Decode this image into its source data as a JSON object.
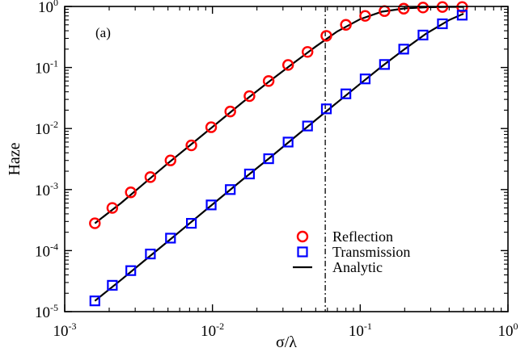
{
  "chart_data": {
    "type": "scatter",
    "panel_label": "(a)",
    "xlabel": "σ/λ",
    "ylabel": "Haze",
    "xscale": "log",
    "yscale": "log",
    "xlim": [
      0.001,
      1
    ],
    "ylim": [
      1e-05,
      1
    ],
    "x_ticks": [
      {
        "base": "10",
        "exp": "-3",
        "value": 0.001
      },
      {
        "base": "10",
        "exp": "-2",
        "value": 0.01
      },
      {
        "base": "10",
        "exp": "-1",
        "value": 0.1
      },
      {
        "base": "10",
        "exp": "0",
        "value": 1
      }
    ],
    "y_ticks": [
      {
        "base": "10",
        "exp": "-5",
        "value": 1e-05
      },
      {
        "base": "10",
        "exp": "-4",
        "value": 0.0001
      },
      {
        "base": "10",
        "exp": "-3",
        "value": 0.001
      },
      {
        "base": "10",
        "exp": "-2",
        "value": 0.01
      },
      {
        "base": "10",
        "exp": "-1",
        "value": 0.1
      },
      {
        "base": "10",
        "exp": "0",
        "value": 1
      }
    ],
    "vertical_line": {
      "x": 0.058,
      "style": "dash-dot"
    },
    "series": [
      {
        "name": "Reflection",
        "marker": "circle",
        "color": "#ff0000",
        "x": [
          0.0016,
          0.0021,
          0.0028,
          0.0038,
          0.0052,
          0.0072,
          0.0098,
          0.0132,
          0.0178,
          0.024,
          0.0325,
          0.044,
          0.059,
          0.08,
          0.108,
          0.146,
          0.197,
          0.266,
          0.36,
          0.49
        ],
        "values": [
          0.00028,
          0.0005,
          0.0009,
          0.0016,
          0.003,
          0.0053,
          0.0105,
          0.019,
          0.034,
          0.06,
          0.11,
          0.18,
          0.33,
          0.5,
          0.7,
          0.84,
          0.92,
          0.96,
          0.98,
          0.98
        ]
      },
      {
        "name": "Transmission",
        "marker": "square",
        "color": "#0000ff",
        "x": [
          0.0016,
          0.0021,
          0.0028,
          0.0038,
          0.0052,
          0.0072,
          0.0098,
          0.0132,
          0.0178,
          0.024,
          0.0325,
          0.044,
          0.059,
          0.08,
          0.108,
          0.146,
          0.197,
          0.266,
          0.36,
          0.49
        ],
        "values": [
          1.5e-05,
          2.7e-05,
          4.7e-05,
          8.8e-05,
          0.00016,
          0.00028,
          0.00056,
          0.001,
          0.0018,
          0.0032,
          0.006,
          0.011,
          0.021,
          0.037,
          0.065,
          0.112,
          0.2,
          0.34,
          0.52,
          0.72
        ]
      },
      {
        "name": "Analytic",
        "marker": "line",
        "color": "#000000",
        "curves": [
          {
            "x": [
              0.0016,
              0.0024,
              0.0035,
              0.005,
              0.0075,
              0.011,
              0.016,
              0.024,
              0.035,
              0.05,
              0.07,
              0.1,
              0.14,
              0.2,
              0.28,
              0.4,
              0.5
            ],
            "values": [
              0.00028,
              0.0006,
              0.0013,
              0.0027,
              0.006,
              0.0128,
              0.027,
              0.058,
              0.116,
              0.22,
              0.39,
              0.62,
              0.82,
              0.93,
              0.97,
              0.985,
              0.985
            ]
          },
          {
            "x": [
              0.0016,
              0.0024,
              0.0035,
              0.005,
              0.0075,
              0.011,
              0.016,
              0.024,
              0.035,
              0.05,
              0.07,
              0.1,
              0.14,
              0.2,
              0.28,
              0.4,
              0.5
            ],
            "values": [
              1.5e-05,
              3.3e-05,
              7e-05,
              0.000142,
              0.00032,
              0.00069,
              0.00146,
              0.0032,
              0.0068,
              0.0138,
              0.0268,
              0.054,
              0.104,
              0.2,
              0.36,
              0.6,
              0.76
            ]
          }
        ]
      }
    ],
    "legend": {
      "position": "lower-right",
      "entries": [
        "Reflection",
        "Transmission",
        "Analytic"
      ]
    }
  }
}
